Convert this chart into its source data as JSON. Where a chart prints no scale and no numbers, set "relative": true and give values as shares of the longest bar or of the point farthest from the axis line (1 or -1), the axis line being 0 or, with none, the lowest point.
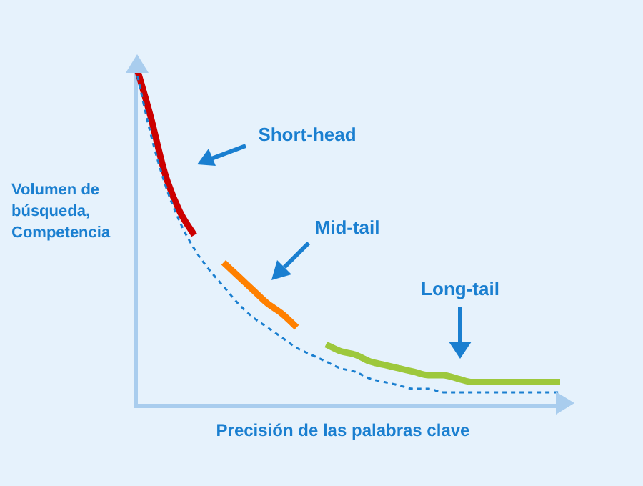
{
  "chart_data": {
    "type": "line",
    "relative": true,
    "xlabel": "Precisión de las palabras clave",
    "ylabel": "Volumen de búsqueda, Competencia",
    "annotations": [
      "Short-head",
      "Mid-tail",
      "Long-tail"
    ],
    "legend": false,
    "grid": false,
    "marker": "none",
    "categories": [
      null,
      null,
      null,
      null,
      null,
      null,
      null,
      null,
      null,
      null,
      null,
      null,
      null,
      null,
      null,
      null,
      null,
      null,
      null,
      null,
      null,
      null,
      null,
      null,
      null,
      null,
      null,
      null,
      null,
      null
    ],
    "series": [
      {
        "color": "#1a7fd0",
        "line_style": "dashed",
        "values": [
          0.99,
          0.8,
          0.65,
          0.54,
          0.46,
          0.4,
          0.35,
          0.3,
          0.26,
          0.23,
          0.2,
          0.17,
          0.15,
          0.13,
          0.11,
          0.1,
          0.08,
          0.07,
          0.06,
          0.05,
          0.05,
          0.04,
          0.04,
          0.04,
          0.04,
          0.04,
          0.04,
          0.04,
          0.04,
          0.04
        ]
      },
      {
        "color": "#cc0000",
        "line_style": "solid",
        "values": [
          1.0,
          0.85,
          0.68,
          0.57,
          0.5,
          null,
          null,
          null,
          null,
          null,
          null,
          null,
          null,
          null,
          null,
          null,
          null,
          null,
          null,
          null,
          null,
          null,
          null,
          null,
          null,
          null,
          null,
          null,
          null,
          null
        ]
      },
      {
        "color": "#ff8000",
        "line_style": "solid",
        "values": [
          null,
          null,
          null,
          null,
          null,
          null,
          0.42,
          0.38,
          0.34,
          0.3,
          0.27,
          0.23,
          null,
          null,
          null,
          null,
          null,
          null,
          null,
          null,
          null,
          null,
          null,
          null,
          null,
          null,
          null,
          null,
          null,
          null
        ]
      },
      {
        "color": "#9dc83c",
        "line_style": "solid",
        "values": [
          null,
          null,
          null,
          null,
          null,
          null,
          null,
          null,
          null,
          null,
          null,
          null,
          null,
          0.18,
          0.16,
          0.15,
          0.13,
          0.12,
          0.11,
          0.1,
          0.09,
          0.09,
          0.08,
          0.07,
          0.07,
          0.07,
          0.07,
          0.07,
          0.07,
          0.07
        ]
      }
    ]
  }
}
